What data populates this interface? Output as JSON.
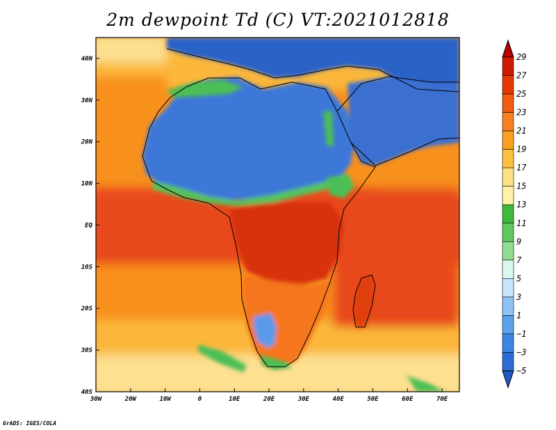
{
  "title": "2m dewpoint Td (C) VT:2021012818",
  "credit": "GrADS: IGES/COLA",
  "map": {
    "lon_range": [
      -30,
      75
    ],
    "lat_range": [
      -40,
      45
    ],
    "lon_ticks": [
      {
        "value": -30,
        "label": "30W"
      },
      {
        "value": -20,
        "label": "20W"
      },
      {
        "value": -10,
        "label": "10W"
      },
      {
        "value": 0,
        "label": "0"
      },
      {
        "value": 10,
        "label": "10E"
      },
      {
        "value": 20,
        "label": "20E"
      },
      {
        "value": 30,
        "label": "30E"
      },
      {
        "value": 40,
        "label": "40E"
      },
      {
        "value": 50,
        "label": "50E"
      },
      {
        "value": 60,
        "label": "60E"
      },
      {
        "value": 70,
        "label": "70E"
      }
    ],
    "lat_ticks": [
      {
        "value": 40,
        "label": "40N"
      },
      {
        "value": 30,
        "label": "30N"
      },
      {
        "value": 20,
        "label": "20N"
      },
      {
        "value": 10,
        "label": "10N"
      },
      {
        "value": 0,
        "label": "EQ"
      },
      {
        "value": -10,
        "label": "10S"
      },
      {
        "value": -20,
        "label": "20S"
      },
      {
        "value": -30,
        "label": "30S"
      },
      {
        "value": -40,
        "label": "40S"
      }
    ]
  },
  "colorbar": {
    "labels": [
      "29",
      "27",
      "25",
      "23",
      "21",
      "19",
      "17",
      "15",
      "13",
      "11",
      "9",
      "7",
      "5",
      "3",
      "1",
      "−1",
      "−3",
      "−5"
    ],
    "colors": [
      "#b30000",
      "#d01a00",
      "#e63900",
      "#f25c10",
      "#f98020",
      "#fba020",
      "#fdc040",
      "#fde080",
      "#fff2a8",
      "#3cba3c",
      "#60c860",
      "#90dc90",
      "#d8f8ee",
      "#c6e6ff",
      "#8ec4f4",
      "#5aa2ec",
      "#3a84e2",
      "#2a6cd4",
      "#1f5cc8"
    ]
  },
  "regions": {
    "ocean_tropical": "#e84a1c",
    "ocean_mid": "#f8901e",
    "ocean_subtrop": "#fbb73a",
    "ocean_cool": "#fde090",
    "sahara": "#3c78d8",
    "arabia": "#3a70d0",
    "mediterranean": "#2a62c8",
    "central_africa": "#d83010",
    "south_africa": "#f5761a",
    "kalahari": "#5a9ae8",
    "madagascar": "#e04010",
    "sahel_band": "#56c25a",
    "green_patch": "#4cbf54"
  }
}
